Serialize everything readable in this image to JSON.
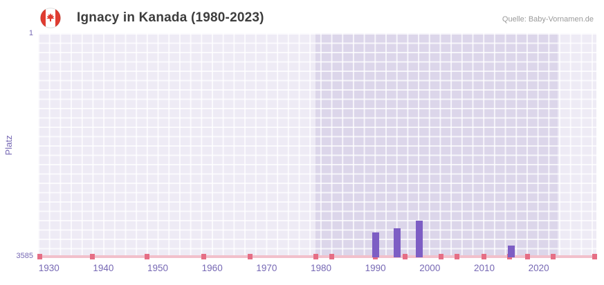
{
  "header": {
    "title": "Ignacy in Kanada (1980-2023)",
    "source": "Quelle: Baby-Vornamen.de",
    "flag_icon": "canada-flag-icon"
  },
  "chart_data": {
    "type": "bar",
    "title": "Ignacy in Kanada (1980-2023)",
    "xlabel": "",
    "ylabel": "Platz",
    "y_axis": {
      "min": 1,
      "max": 3585,
      "top_label": "1",
      "bottom_label": "3585",
      "inverted": true
    },
    "x_domain": [
      1928,
      2030.6
    ],
    "x_ticks": [
      1930,
      1940,
      1950,
      1960,
      1970,
      1980,
      1990,
      2000,
      2010,
      2020
    ],
    "highlight_range": [
      1979,
      2023.5
    ],
    "bars": [
      {
        "year": 1990,
        "rank": 3185
      },
      {
        "year": 1994,
        "rank": 3120
      },
      {
        "year": 1998,
        "rank": 2995
      },
      {
        "year": 2015,
        "rank": 3395
      }
    ],
    "baseline_marker_years": [
      1928.3,
      1938,
      1948,
      1958.5,
      1967,
      1979,
      1982,
      1990,
      1995.5,
      2002,
      2005,
      2010,
      2014.7,
      2018,
      2022.7,
      2030.3
    ],
    "grid": true,
    "legend": "none",
    "colors": {
      "bar": "#7d5ec4",
      "axis_text": "#7668b4",
      "plot_bg": "#dcd6ea",
      "grid": "#ffffff",
      "baseline": "#f2c0cb",
      "marker": "#e56e85",
      "fade_overlay": "rgba(255,255,255,0.5)",
      "title_text": "#3d3d3d",
      "source_text": "#9a9a9a",
      "flag_red": "#e03c31"
    }
  }
}
